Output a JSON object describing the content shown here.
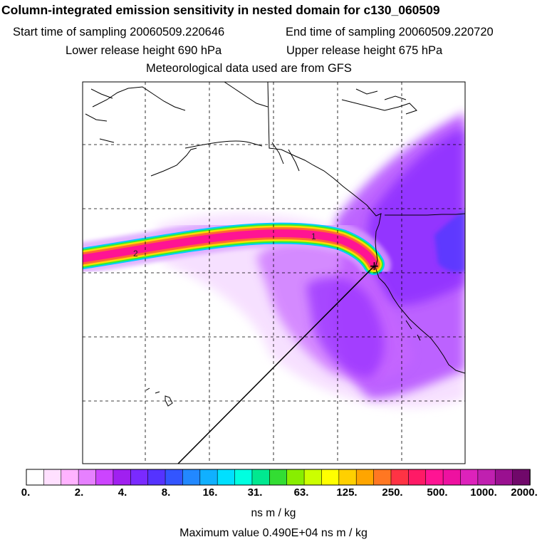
{
  "header": {
    "title": "Column-integrated emission sensitivity in nested domain for c130_060509",
    "start_label": "Start time of sampling 20060509.220646",
    "end_label": "End time of sampling 20060509.220720",
    "lower_label": "Lower release height  690 hPa",
    "upper_label": "Upper release height  675 hPa",
    "met_label": "Meteorological data used are from GFS"
  },
  "map": {
    "plume_markers": [
      "1",
      "2"
    ],
    "release_marker": "+",
    "colors": {
      "plume_core": "#ff1493",
      "halo": "#cc66ff",
      "coastline": "#000000",
      "grid": "#000000"
    }
  },
  "colorbar": {
    "tick_labels": [
      "0.",
      "2.",
      "4.",
      "8.",
      "16.",
      "31.",
      "63.",
      "125.",
      "250.",
      "500.",
      "1000.",
      "2000."
    ],
    "colors": [
      "#ffffff",
      "#ffe0ff",
      "#ffb3ff",
      "#e680ff",
      "#cc44ff",
      "#a020f0",
      "#7a2aff",
      "#5533ff",
      "#3355ff",
      "#2288ff",
      "#10b0ff",
      "#00e0ff",
      "#00ffe0",
      "#00e890",
      "#33dd33",
      "#88ee00",
      "#ccff00",
      "#ffff00",
      "#ffd000",
      "#ffa500",
      "#ff7722",
      "#ff3344",
      "#ff1a66",
      "#ff1493",
      "#ee11a0",
      "#dd22bb",
      "#c020b0",
      "#9a1090",
      "#70086a"
    ],
    "units": "ns m / kg",
    "max_value": "Maximum value  0.490E+04 ns m / kg"
  }
}
